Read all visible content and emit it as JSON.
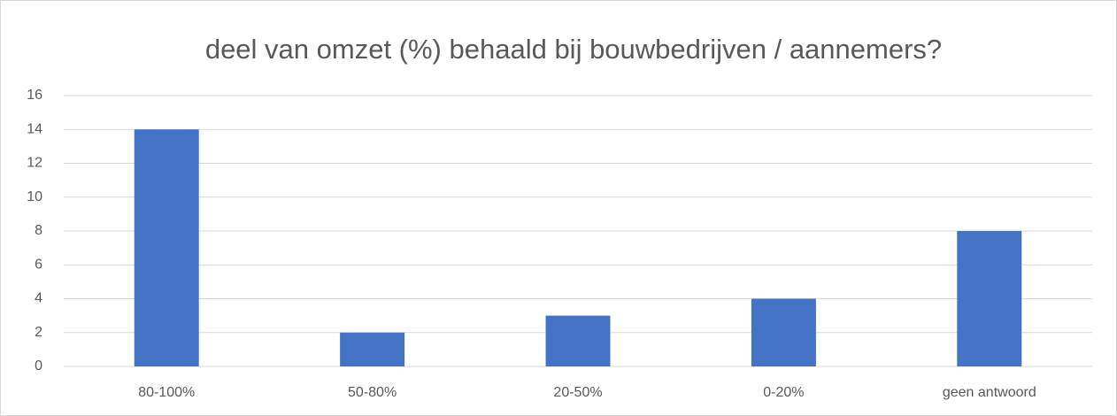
{
  "chart_data": {
    "type": "bar",
    "title": "deel van omzet (%) behaald bij bouwbedrijven / aannemers?",
    "categories": [
      "80-100%",
      "50-80%",
      "20-50%",
      "0-20%",
      "geen antwoord"
    ],
    "values": [
      14,
      2,
      3,
      4,
      8
    ],
    "color": "#4472c4",
    "ylim": [
      0,
      16
    ],
    "yticks": [
      0,
      2,
      4,
      6,
      8,
      10,
      12,
      14,
      16
    ],
    "grid": true
  }
}
